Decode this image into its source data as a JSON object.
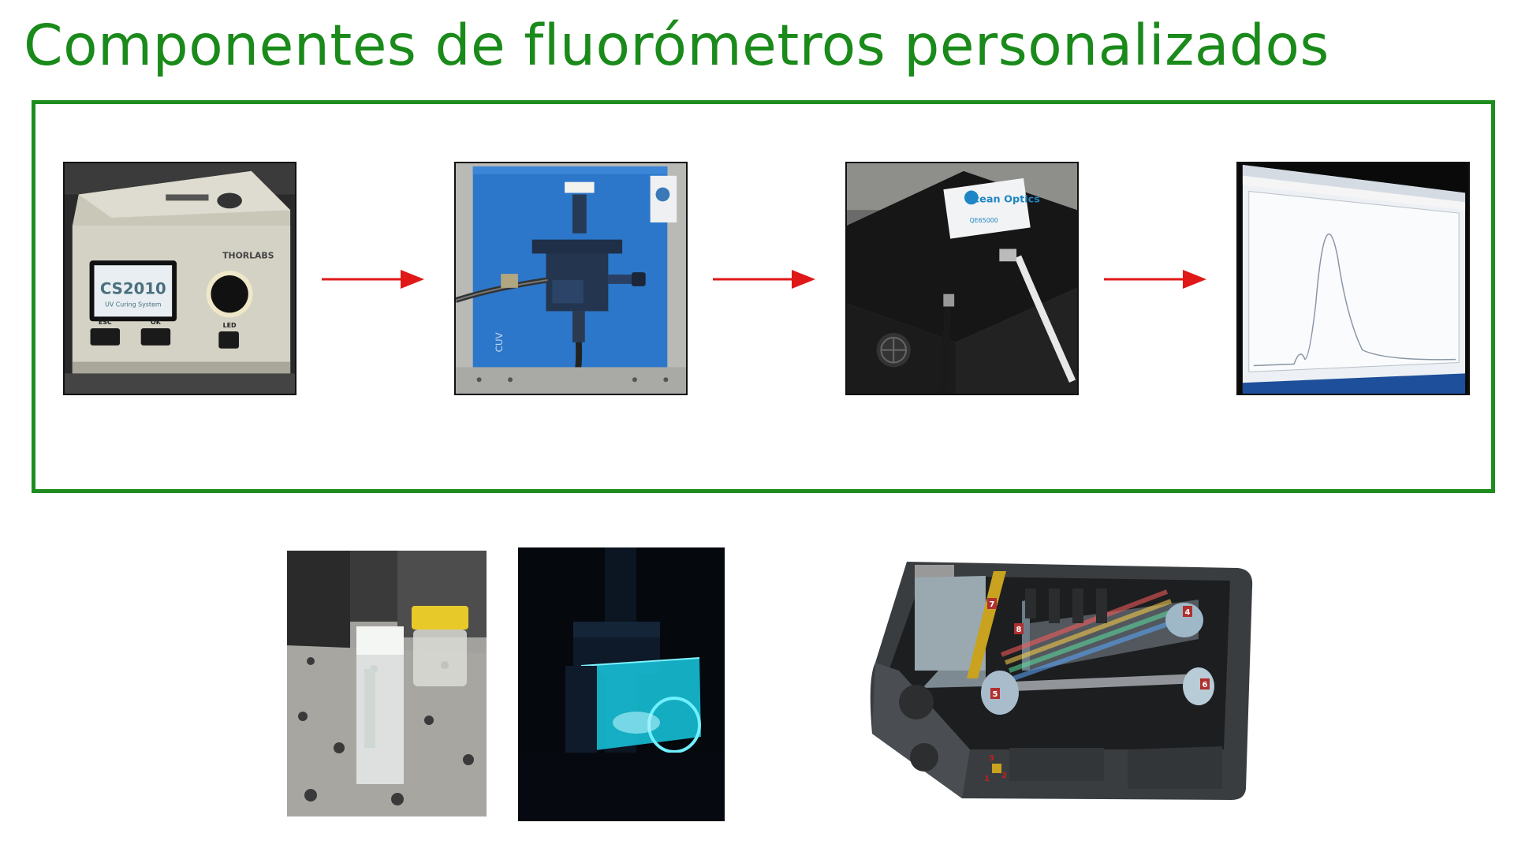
{
  "title": "Componentes de fluorómetros personalizados",
  "colors": {
    "title": "#1a8a1a",
    "frame": "#1f8c1f",
    "arrow": "#e01818"
  },
  "photo_text": {
    "light_source_model": "CS2010",
    "light_source_subtitle": "UV Curing System",
    "light_source_brand": "THORLABS",
    "light_source_esc": "ESC",
    "light_source_ok": "OK",
    "light_source_led": "LED",
    "cuvette_holder_label": "CUV",
    "spectrometer_brand": "Ocean Optics",
    "spectrometer_model": "QE65000"
  },
  "diagram_markers": [
    "1",
    "2",
    "3",
    "4",
    "5",
    "6",
    "7",
    "8"
  ]
}
